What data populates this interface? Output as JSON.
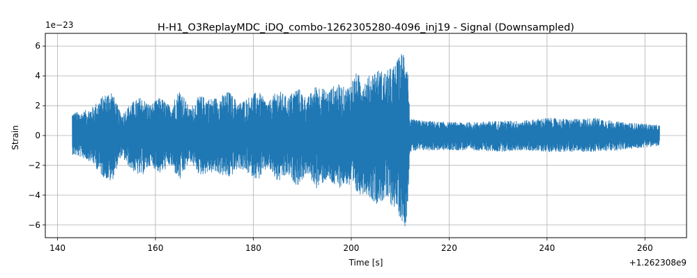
{
  "chart_data": {
    "type": "line",
    "title": "H-H1_O3ReplayMDC_iDQ_combo-1262305280-4096_inj19 - Signal (Downsampled)",
    "xlabel": "Time [s]",
    "ylabel": "Strain",
    "x_offset_label": "+1.262308e9",
    "y_scale_label": "1e−23",
    "xlim": [
      137.5,
      268.5
    ],
    "ylim": [
      -6.85,
      6.85
    ],
    "x_ticks": [
      140,
      160,
      180,
      200,
      220,
      240,
      260
    ],
    "y_ticks": [
      -6,
      -4,
      -2,
      0,
      2,
      4,
      6
    ],
    "x_tick_labels": [
      "140",
      "160",
      "180",
      "200",
      "220",
      "240",
      "260"
    ],
    "y_tick_labels": [
      "−6",
      "−4",
      "−2",
      "0",
      "2",
      "4",
      "6"
    ],
    "grid": true,
    "series": [
      {
        "color": "#1f77b4",
        "x_range": [
          143,
          263
        ],
        "envelope": {
          "time": [
            143,
            145,
            147,
            149,
            151,
            153,
            155,
            157,
            159,
            161,
            163,
            165,
            167,
            169,
            171,
            173,
            175,
            177,
            179,
            181,
            183,
            185,
            187,
            189,
            191,
            193,
            195,
            197,
            199,
            201,
            203,
            205,
            207,
            209,
            211,
            211.5,
            212,
            215,
            220,
            225,
            230,
            235,
            240,
            245,
            250,
            255,
            260,
            263
          ],
          "upper": [
            1.6,
            1.6,
            1.9,
            2.6,
            3.1,
            1.4,
            2.2,
            2.6,
            2.1,
            2.6,
            2.0,
            3.2,
            1.8,
            2.7,
            2.5,
            2.6,
            3.0,
            2.2,
            2.6,
            3.0,
            2.2,
            3.1,
            2.6,
            3.3,
            2.5,
            3.5,
            3.0,
            3.5,
            3.2,
            4.2,
            3.8,
            4.5,
            4.3,
            4.8,
            6.1,
            5.0,
            1.1,
            1.0,
            0.9,
            0.9,
            1.0,
            1.0,
            1.2,
            1.1,
            1.2,
            0.9,
            0.8,
            0.7
          ],
          "lower": [
            -1.3,
            -1.5,
            -1.8,
            -2.7,
            -3.2,
            -1.4,
            -2.3,
            -2.8,
            -2.0,
            -2.6,
            -2.0,
            -3.1,
            -1.7,
            -2.7,
            -2.5,
            -2.6,
            -2.9,
            -2.2,
            -2.6,
            -3.0,
            -2.2,
            -3.2,
            -2.7,
            -3.4,
            -2.6,
            -3.6,
            -3.0,
            -3.6,
            -3.3,
            -4.0,
            -3.9,
            -4.6,
            -4.4,
            -4.9,
            -6.2,
            -5.0,
            -1.1,
            -1.0,
            -1.0,
            -1.0,
            -1.1,
            -1.0,
            -1.1,
            -1.1,
            -1.1,
            -1.0,
            -0.8,
            -0.7
          ]
        }
      }
    ]
  }
}
